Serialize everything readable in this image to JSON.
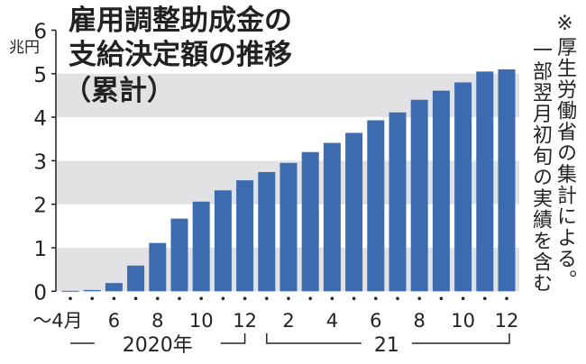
{
  "chart_data": {
    "type": "bar",
    "title_lines": [
      "雇用調整助成金の",
      "支給決定額の推移",
      "（累計）"
    ],
    "ylabel": "兆円",
    "ylim": [
      0,
      6
    ],
    "yticks": [
      "0",
      "1",
      "2",
      "3",
      "4",
      "5",
      "6"
    ],
    "grid": "alternating horizontal bands",
    "categories": [
      "2020-4",
      "2020-5",
      "2020-6",
      "2020-7",
      "2020-8",
      "2020-9",
      "2020-10",
      "2020-11",
      "2020-12",
      "2021-1",
      "2021-2",
      "2021-3",
      "2021-4",
      "2021-5",
      "2021-6",
      "2021-7",
      "2021-8",
      "2021-9",
      "2021-10",
      "2021-11",
      "2021-12"
    ],
    "values": [
      0.01,
      0.03,
      0.19,
      0.59,
      1.11,
      1.67,
      2.06,
      2.32,
      2.55,
      2.74,
      2.95,
      3.2,
      3.41,
      3.64,
      3.93,
      4.11,
      4.4,
      4.61,
      4.8,
      5.05,
      5.1
    ],
    "xtick_labels": [
      "～4月",
      "",
      "6",
      "",
      "8",
      "",
      "10",
      "",
      "12",
      "",
      "2",
      "",
      "4",
      "",
      "6",
      "",
      "8",
      "",
      "10",
      "",
      "12"
    ],
    "year_groups": [
      {
        "label": "2020年",
        "from": 0,
        "to": 8
      },
      {
        "label": "21",
        "from": 9,
        "to": 20
      }
    ],
    "note_lines": [
      "※厚生労働省の集計による。",
      "一部翌月初旬の実績を含む"
    ],
    "colors": {
      "bar": "#3d6bb0",
      "band": "#e2e2e4",
      "text": "#222222"
    }
  }
}
